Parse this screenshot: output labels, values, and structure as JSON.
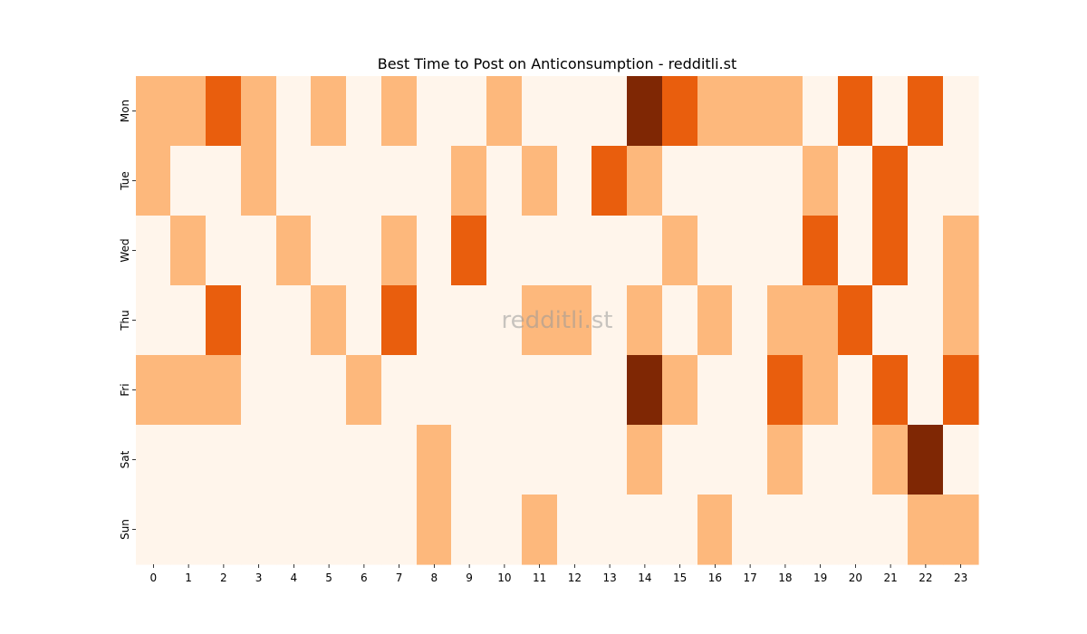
{
  "chart_data": {
    "type": "heatmap",
    "title": "Best Time to Post on Anticonsumption - redditli.st",
    "watermark": "redditli.st",
    "x_categories": [
      "0",
      "1",
      "2",
      "3",
      "4",
      "5",
      "6",
      "7",
      "8",
      "9",
      "10",
      "11",
      "12",
      "13",
      "14",
      "15",
      "16",
      "17",
      "18",
      "19",
      "20",
      "21",
      "22",
      "23"
    ],
    "y_categories": [
      "Mon",
      "Tue",
      "Wed",
      "Thu",
      "Fri",
      "Sat",
      "Sun"
    ],
    "value_range": [
      0,
      3
    ],
    "colormap": "Oranges",
    "colors": [
      "#fff5eb",
      "#fdb87c",
      "#e95e0d",
      "#7f2704"
    ],
    "values": [
      [
        1,
        1,
        2,
        1,
        0,
        1,
        0,
        1,
        0,
        0,
        1,
        0,
        0,
        0,
        3,
        2,
        1,
        1,
        1,
        0,
        2,
        0,
        2,
        0
      ],
      [
        1,
        0,
        0,
        1,
        0,
        0,
        0,
        0,
        0,
        1,
        0,
        1,
        0,
        2,
        1,
        0,
        0,
        0,
        0,
        1,
        0,
        2,
        0,
        0
      ],
      [
        0,
        1,
        0,
        0,
        1,
        0,
        0,
        1,
        0,
        2,
        0,
        0,
        0,
        0,
        0,
        1,
        0,
        0,
        0,
        2,
        0,
        2,
        0,
        1
      ],
      [
        0,
        0,
        2,
        0,
        0,
        1,
        0,
        2,
        0,
        0,
        0,
        1,
        1,
        0,
        1,
        0,
        1,
        0,
        1,
        1,
        2,
        0,
        0,
        1
      ],
      [
        1,
        1,
        1,
        0,
        0,
        0,
        1,
        0,
        0,
        0,
        0,
        0,
        0,
        0,
        3,
        1,
        0,
        0,
        2,
        1,
        0,
        2,
        0,
        2
      ],
      [
        0,
        0,
        0,
        0,
        0,
        0,
        0,
        0,
        1,
        0,
        0,
        0,
        0,
        0,
        1,
        0,
        0,
        0,
        1,
        0,
        0,
        1,
        3,
        0
      ],
      [
        0,
        0,
        0,
        0,
        0,
        0,
        0,
        0,
        1,
        0,
        0,
        1,
        0,
        0,
        0,
        0,
        1,
        0,
        0,
        0,
        0,
        0,
        1,
        1
      ]
    ],
    "grid": false,
    "legend": "none"
  }
}
